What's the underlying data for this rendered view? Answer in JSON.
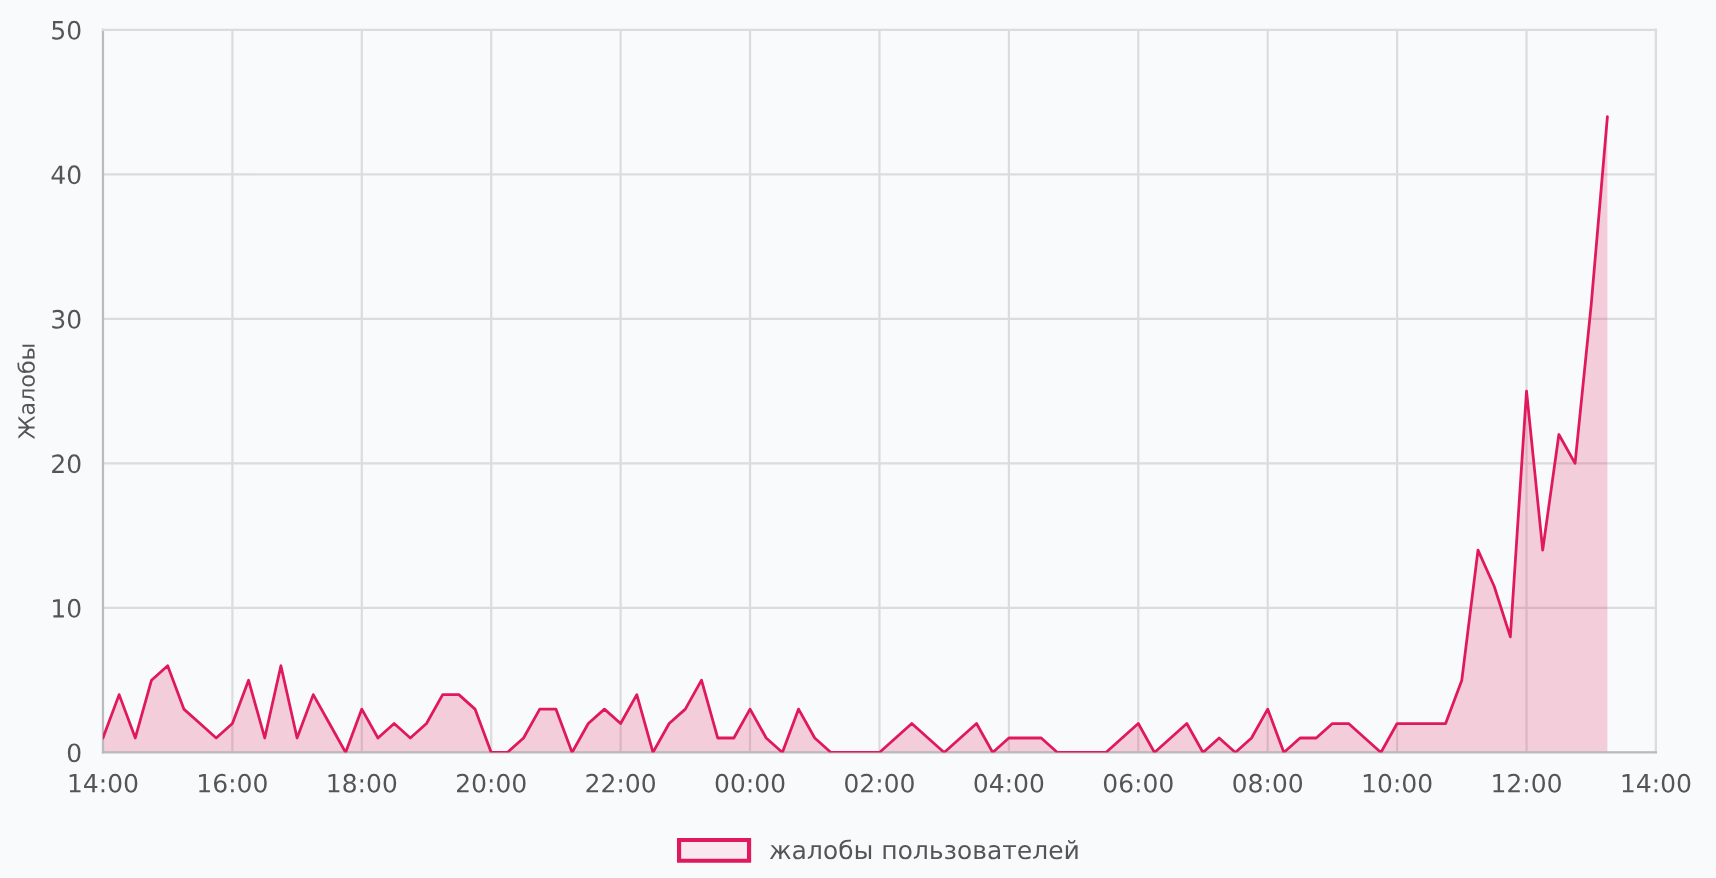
{
  "chart_data": {
    "type": "area",
    "ylabel": "Жалобы",
    "x": [
      "2000-01-01T14:00",
      "2000-01-01T14:15",
      "2000-01-01T14:30",
      "2000-01-01T14:45",
      "2000-01-01T15:00",
      "2000-01-01T15:15",
      "2000-01-01T15:30",
      "2000-01-01T15:45",
      "2000-01-01T16:00",
      "2000-01-01T16:15",
      "2000-01-01T16:30",
      "2000-01-01T16:45",
      "2000-01-01T17:00",
      "2000-01-01T17:15",
      "2000-01-01T17:30",
      "2000-01-01T17:45",
      "2000-01-01T18:00",
      "2000-01-01T18:15",
      "2000-01-01T18:30",
      "2000-01-01T18:45",
      "2000-01-01T19:00",
      "2000-01-01T19:15",
      "2000-01-01T19:30",
      "2000-01-01T19:45",
      "2000-01-01T20:00",
      "2000-01-01T20:15",
      "2000-01-01T20:30",
      "2000-01-01T20:45",
      "2000-01-01T21:00",
      "2000-01-01T21:15",
      "2000-01-01T21:30",
      "2000-01-01T21:45",
      "2000-01-01T22:00",
      "2000-01-01T22:15",
      "2000-01-01T22:30",
      "2000-01-01T22:45",
      "2000-01-01T23:00",
      "2000-01-01T23:15",
      "2000-01-01T23:30",
      "2000-01-01T23:45",
      "2000-01-02T00:00",
      "2000-01-02T00:15",
      "2000-01-02T00:30",
      "2000-01-02T00:45",
      "2000-01-02T01:00",
      "2000-01-02T01:15",
      "2000-01-02T01:30",
      "2000-01-02T01:45",
      "2000-01-02T02:00",
      "2000-01-02T02:15",
      "2000-01-02T02:30",
      "2000-01-02T02:45",
      "2000-01-02T03:00",
      "2000-01-02T03:15",
      "2000-01-02T03:30",
      "2000-01-02T03:45",
      "2000-01-02T04:00",
      "2000-01-02T04:15",
      "2000-01-02T04:30",
      "2000-01-02T04:45",
      "2000-01-02T05:00",
      "2000-01-02T05:15",
      "2000-01-02T05:30",
      "2000-01-02T05:45",
      "2000-01-02T06:00",
      "2000-01-02T06:15",
      "2000-01-02T06:30",
      "2000-01-02T06:45",
      "2000-01-02T07:00",
      "2000-01-02T07:15",
      "2000-01-02T07:30",
      "2000-01-02T07:45",
      "2000-01-02T08:00",
      "2000-01-02T08:15",
      "2000-01-02T08:30",
      "2000-01-02T08:45",
      "2000-01-02T09:00",
      "2000-01-02T09:15",
      "2000-01-02T09:30",
      "2000-01-02T09:45",
      "2000-01-02T10:00",
      "2000-01-02T10:15",
      "2000-01-02T10:30",
      "2000-01-02T10:45",
      "2000-01-02T11:00",
      "2000-01-02T11:15",
      "2000-01-02T11:30",
      "2000-01-02T11:45",
      "2000-01-02T12:00",
      "2000-01-02T12:15",
      "2000-01-02T12:30",
      "2000-01-02T12:45",
      "2000-01-02T13:00",
      "2000-01-02T13:15"
    ],
    "series": [
      {
        "name": "жалобы пользователей",
        "color": "#e0195c",
        "values": [
          1,
          4,
          1,
          5,
          6,
          3,
          2,
          1,
          2,
          5,
          1,
          6,
          1,
          4,
          2,
          0,
          3,
          1,
          2,
          1,
          2,
          4,
          4,
          3,
          0,
          0,
          1,
          3,
          3,
          0,
          2,
          3,
          2,
          4,
          0,
          2,
          3,
          5,
          1,
          1,
          3,
          1,
          0,
          3,
          1,
          0,
          0,
          0,
          0,
          1,
          2,
          1,
          0,
          1,
          2,
          0,
          1,
          1,
          1,
          0,
          0,
          0,
          0,
          1,
          2,
          0,
          1,
          2,
          0,
          1,
          0,
          1,
          3,
          0,
          1,
          1,
          2,
          2,
          1,
          0,
          2,
          2,
          2,
          2,
          5,
          14,
          11.5,
          8,
          25,
          14,
          22,
          20,
          31,
          44
        ]
      }
    ],
    "xlim": [
      "2000-01-01T14:00",
      "2000-01-02T14:00"
    ],
    "ylim": [
      0,
      50
    ],
    "xticks": [
      {
        "value": "2000-01-01T14:00",
        "label": "14:00"
      },
      {
        "value": "2000-01-01T16:00",
        "label": "16:00"
      },
      {
        "value": "2000-01-01T18:00",
        "label": "18:00"
      },
      {
        "value": "2000-01-01T20:00",
        "label": "20:00"
      },
      {
        "value": "2000-01-01T22:00",
        "label": "22:00"
      },
      {
        "value": "2000-01-02T00:00",
        "label": "00:00"
      },
      {
        "value": "2000-01-02T02:00",
        "label": "02:00"
      },
      {
        "value": "2000-01-02T04:00",
        "label": "04:00"
      },
      {
        "value": "2000-01-02T06:00",
        "label": "06:00"
      },
      {
        "value": "2000-01-02T08:00",
        "label": "08:00"
      },
      {
        "value": "2000-01-02T10:00",
        "label": "10:00"
      },
      {
        "value": "2000-01-02T12:00",
        "label": "12:00"
      },
      {
        "value": "2000-01-02T14:00",
        "label": "14:00"
      }
    ],
    "yticks": [
      0,
      10,
      20,
      30,
      40,
      50
    ],
    "grid": true,
    "legend": "bottom",
    "marker": "none",
    "line_style": "solid"
  }
}
